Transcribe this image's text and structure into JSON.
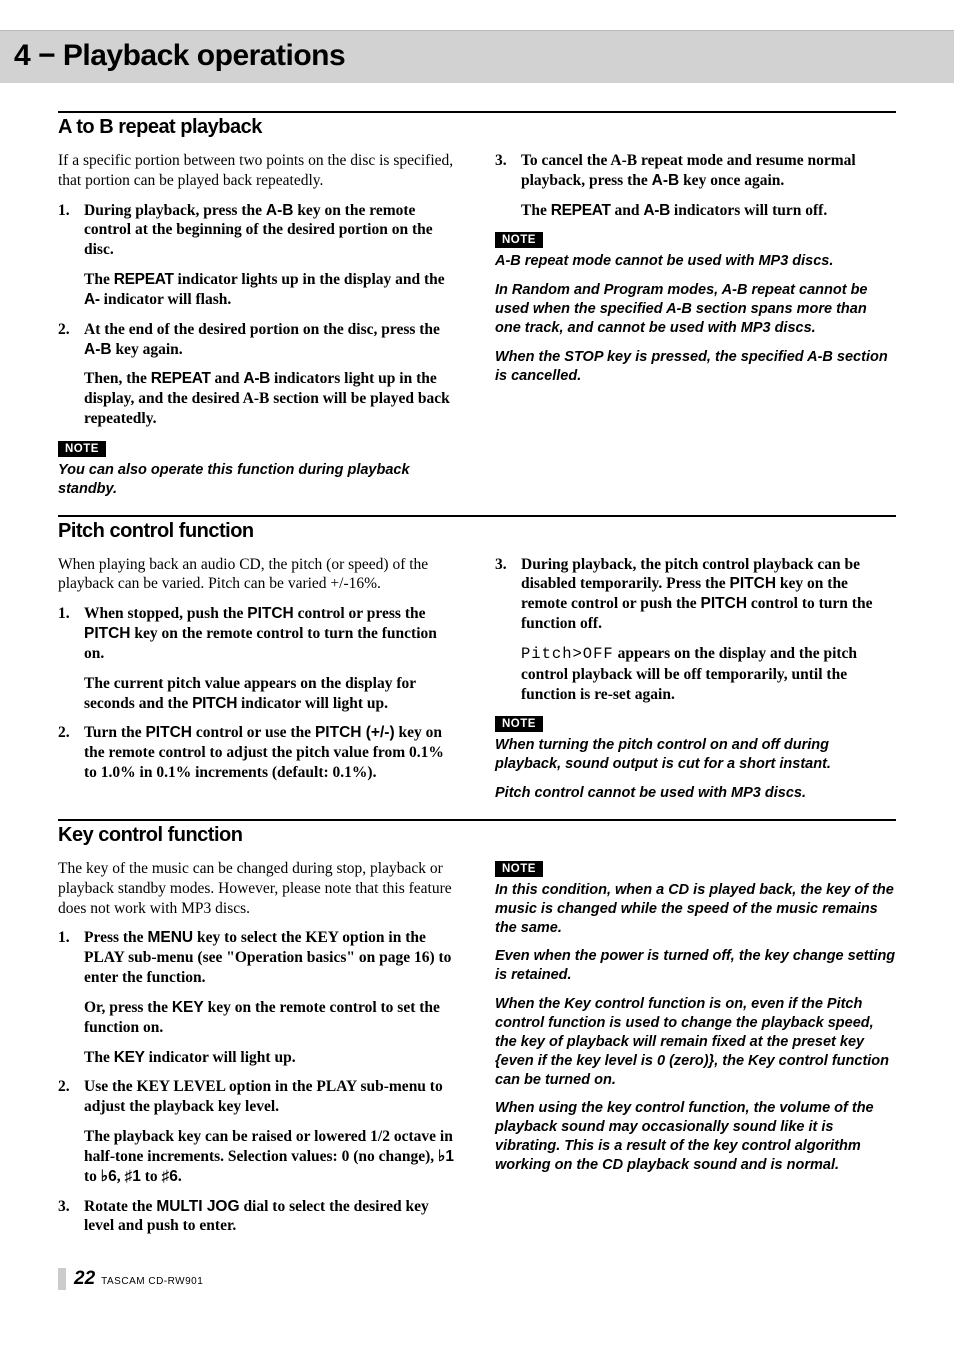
{
  "chapter": {
    "title": "4 − Playback operations"
  },
  "footer": {
    "page": "22",
    "model": "TASCAM  CD-RW901"
  },
  "sections": {
    "ab": {
      "title": "A to B repeat playback",
      "left": {
        "intro": "If a specific portion between two points on the disc is specified, that portion can be played back repeatedly.",
        "s1a": "During playback, press the ",
        "s1b": " key on the remote control at the beginning of the desired portion on the disc.",
        "s1c_a": "The ",
        "s1c_b": " indicator lights up in the display and the ",
        "s1c_c": " indicator will flash.",
        "s2a": "At the end of the desired portion on the disc, press the ",
        "s2b": " key again.",
        "s2c_a": "Then, the ",
        "s2c_b": " and ",
        "s2c_c": " indicators light up in the display, and the desired A-B section will be played back repeatedly.",
        "note": "You can also operate this function during playback standby."
      },
      "right": {
        "s3a": "To cancel the A-B repeat mode and resume normal playback, press the ",
        "s3b": " key once again.",
        "s3c_a": "The ",
        "s3c_b": " and ",
        "s3c_c": " indicators will turn off.",
        "n1": "A-B repeat mode cannot be used with MP3 discs.",
        "n2": "In Random and Program modes, A-B repeat cannot be used when the specified A-B section spans more than one track, and cannot be used with MP3 discs.",
        "n3": "When the STOP key is pressed, the specified A-B section is cancelled."
      },
      "labels": {
        "key_ab": "A-B",
        "ind_repeat": "REPEAT",
        "ind_a": "A-",
        "ind_ab": "A-B"
      }
    },
    "pitch": {
      "title": "Pitch control function",
      "left": {
        "intro": "When playing back an audio CD, the pitch (or speed) of the playback can be varied. Pitch can be varied +/-16%.",
        "s1a": "When stopped, push the ",
        "s1b": " control or press the ",
        "s1c": " key on the remote control to turn the function on.",
        "s1d_a": "The current pitch value appears on the display for seconds and the ",
        "s1d_b": " indicator will light up.",
        "s2a": "Turn the ",
        "s2b": " control or use the ",
        "s2c": " key on the remote control to adjust the pitch value from 0.1% to 1.0% in 0.1% increments (default: 0.1%)."
      },
      "right": {
        "s3a": "During playback, the pitch control playback can be disabled temporarily. Press the ",
        "s3b": " key on the remote control or push the ",
        "s3c": " control to turn the function off.",
        "s3d_b": " appears on the display and the pitch control playback will be off temporarily, until the function is re-set again.",
        "n1": "When turning the pitch control on and off during playback, sound output is cut for a short instant.",
        "n2": "Pitch control cannot be used with MP3 discs."
      },
      "labels": {
        "pitch": "PITCH",
        "pitch_pm": "PITCH (+/-)",
        "ind_pitch": "PITCH",
        "off": "Pitch>OFF"
      }
    },
    "key": {
      "title": "Key control function",
      "left": {
        "intro": "The key of the music can be changed during stop, playback or playback standby modes. However, please note that this feature does not work with MP3 discs.",
        "s1a": "Press the ",
        "s1b": " key to select the KEY option in the PLAY sub-menu (see \"Operation basics\" on page 16) to enter the function.",
        "s1c_a": "Or, press the ",
        "s1c_b": " key on the remote control to set the function on.",
        "s1d_a": "The ",
        "s1d_b": " indicator will light up.",
        "s2": "Use the KEY LEVEL option in the PLAY sub-menu to adjust the playback key level.",
        "s2b_a": "The playback key can be raised or lowered 1/2 octave in half-tone increments. Selection values: 0 (no change), ",
        "s2b_b": " to ",
        "s2b_c": ", ",
        "s2b_d": " to ",
        "s2b_e": ".",
        "s3a": "Rotate the ",
        "s3b": " dial to select the desired key level and push to enter."
      },
      "right": {
        "n1": "In this condition, when a CD is played back, the key of the music is changed while the speed of the music remains the same.",
        "n2": "Even when the power is turned off, the key change setting is retained.",
        "n3": "When the Key control function is on, even if the Pitch control function is used to change the playback speed, the key of playback will remain fixed at the preset key {even if the key level is 0 (zero)}, the Key control function can be turned on.",
        "n4": "When using the key control function, the volume of the playback sound may occasionally sound like it is vibrating. This is a result of the key control algorithm working on the CD playback sound and is normal."
      },
      "labels": {
        "menu": "MENU",
        "key": "KEY",
        "ind_key": "KEY",
        "multi": "MULTI JOG",
        "b1": "♭1",
        "b6": "♭6",
        "s1": "♯1",
        "s6": "♯6"
      }
    }
  },
  "ui": {
    "note": "NOTE"
  }
}
